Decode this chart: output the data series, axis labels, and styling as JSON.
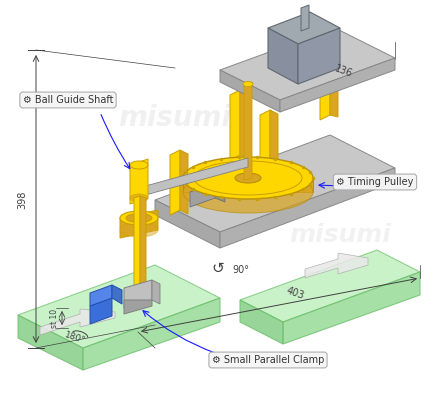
{
  "bg_color": "#ffffff",
  "title": "",
  "labels": {
    "ball_guide_shaft": "Ball Guide Shaft",
    "timing_pulley": "Timing Pulley",
    "small_parallel_clamp": "Small Parallel Clamp"
  },
  "dimensions": {
    "d136": "136",
    "d398": "398",
    "d403": "403",
    "d180": "180°",
    "d90": "90°",
    "d10": "st 10"
  },
  "colors": {
    "green_top": "#b2edb2",
    "green_left": "#7ecb7e",
    "green_right": "#90d990",
    "yellow": "#FFD700",
    "yellow_dark": "#DAA520",
    "gray_light": "#c8c8c8",
    "gray_mid": "#b0b0b0",
    "gray_dark": "#a8a8a8",
    "motor_top": "#a0a8b0",
    "motor_left": "#8890a0",
    "motor_right": "#9098a8",
    "blue_top": "#5585e8",
    "blue_front": "#3a6fda",
    "blue_side": "#4070c8",
    "dim_line": "#404040",
    "label_line": "#1a1aff",
    "label_bg": "#f5f5f5",
    "label_edge": "#aaaaaa",
    "label_text": "#333333",
    "arrow_fill": "#e8e8e8",
    "arrow_edge": "#aaaaaa",
    "watermark": "#d0d0d0"
  },
  "watermark": "misumi"
}
